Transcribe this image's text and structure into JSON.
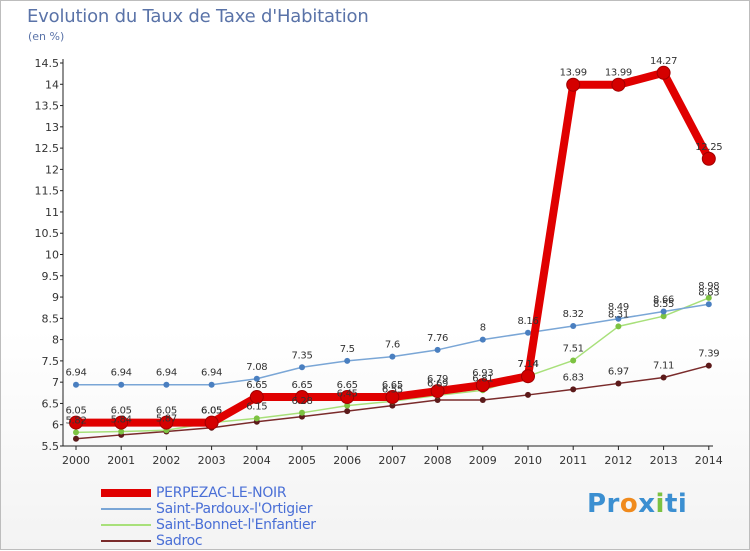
{
  "title": "Evolution du Taux de Taxe d'Habitation",
  "subtitle": "(en %)",
  "logo": {
    "parts": [
      "Pr",
      "o",
      "x",
      "i",
      "ti"
    ],
    "colors": [
      "#3b8fd1",
      "#f08a1c",
      "#3b8fd1",
      "#7cc242",
      "#3b8fd1"
    ]
  },
  "chart_data": {
    "type": "line",
    "x": [
      2000,
      2001,
      2002,
      2003,
      2004,
      2005,
      2006,
      2007,
      2008,
      2009,
      2010,
      2011,
      2012,
      2013,
      2014
    ],
    "ylim": [
      5.5,
      14.5
    ],
    "yticks": [
      "5.5",
      "6",
      "6.5",
      "7",
      "7.5",
      "8",
      "8.5",
      "9",
      "9.5",
      "10",
      "10.5",
      "11",
      "11.5",
      "12",
      "12.5",
      "13",
      "13.5",
      "14",
      "14.5"
    ],
    "grid": false,
    "legend_position": "bottom",
    "series": [
      {
        "name": "Sadroc",
        "color": "#7a2b2b",
        "width": 1.5,
        "marker": "#5c1a1a",
        "values": [
          5.67,
          5.76,
          5.84,
          5.93,
          6.07,
          6.19,
          6.32,
          6.45,
          6.58,
          6.58,
          6.7,
          6.83,
          6.97,
          7.11,
          7.39
        ],
        "labels": [
          "",
          "",
          "",
          "",
          "",
          "",
          "",
          "",
          "",
          "",
          "",
          "6.83",
          "6.97",
          "7.11",
          "7.39"
        ]
      },
      {
        "name": "Saint-Bonnet-l'Enfantier",
        "color": "#a8e07a",
        "width": 1.5,
        "marker": "#7dc242",
        "values": [
          5.82,
          5.84,
          5.87,
          6.05,
          6.15,
          6.28,
          6.45,
          6.55,
          6.69,
          6.81,
          7.14,
          7.51,
          8.31,
          8.55,
          8.98
        ],
        "labels": [
          "5.82",
          "5.84",
          "5.87",
          "6.05",
          "6.15",
          "6.28",
          "6.45",
          "6.55",
          "6.69",
          "6.81",
          "7.14",
          "7.51",
          "8.31",
          "8.55",
          "8.98"
        ]
      },
      {
        "name": "Saint-Pardoux-l'Ortigier",
        "color": "#7aa6d6",
        "width": 1.5,
        "marker": "#4a7fc0",
        "values": [
          6.94,
          6.94,
          6.94,
          6.94,
          7.08,
          7.35,
          7.5,
          7.6,
          7.76,
          8.0,
          8.16,
          8.32,
          8.49,
          8.66,
          8.83
        ],
        "labels": [
          "6.94",
          "6.94",
          "6.94",
          "6.94",
          "7.08",
          "7.35",
          "7.5",
          "7.6",
          "7.76",
          "8",
          "8.16",
          "8.32",
          "8.49",
          "8.66",
          "8.83"
        ]
      },
      {
        "name": "PERPEZAC-LE-NOIR",
        "color": "#e00000",
        "width": 8,
        "marker": "#d40000",
        "values": [
          6.05,
          6.05,
          6.05,
          6.05,
          6.65,
          6.65,
          6.65,
          6.65,
          6.79,
          6.93,
          7.14,
          13.99,
          13.99,
          14.27,
          12.25
        ],
        "labels": [
          "6.05",
          "6.05",
          "6.05",
          "6.05",
          "6.65",
          "6.65",
          "6.65",
          "6.65",
          "6.79",
          "6.93",
          "7.14",
          "13.99",
          "13.99",
          "14.27",
          "12.25"
        ]
      }
    ],
    "legend": [
      {
        "name": "PERPEZAC-LE-NOIR",
        "color": "#e00000",
        "height": 8
      },
      {
        "name": "Saint-Pardoux-l'Ortigier",
        "color": "#7aa6d6",
        "height": 2
      },
      {
        "name": "Saint-Bonnet-l'Enfantier",
        "color": "#a8e07a",
        "height": 2
      },
      {
        "name": "Sadroc",
        "color": "#7a2b2b",
        "height": 2
      }
    ]
  }
}
